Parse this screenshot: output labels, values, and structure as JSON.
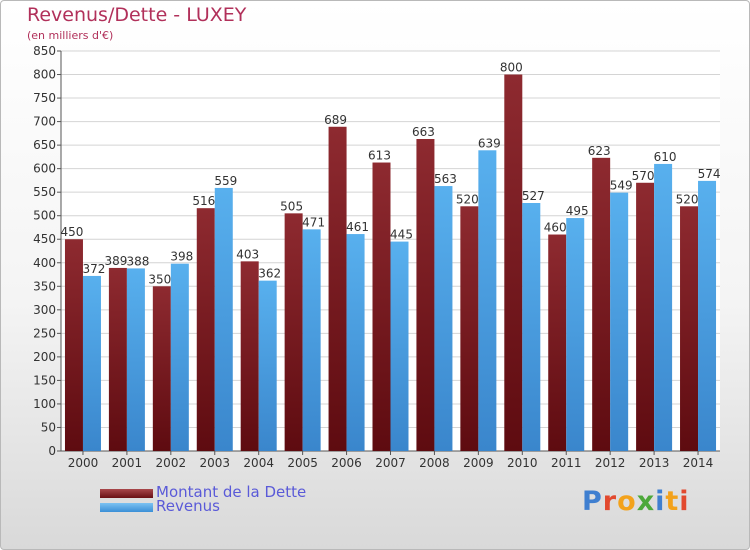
{
  "chart_data": {
    "type": "bar",
    "title": "Revenus/Dette - LUXEY",
    "subtitle": "(en milliers d'€)",
    "categories": [
      "2000",
      "2001",
      "2002",
      "2003",
      "2004",
      "2005",
      "2006",
      "2007",
      "2008",
      "2009",
      "2010",
      "2011",
      "2012",
      "2013",
      "2014"
    ],
    "series": [
      {
        "name": "Montant de la Dette",
        "values": [
          450,
          389,
          350,
          516,
          403,
          505,
          689,
          613,
          663,
          520,
          800,
          460,
          623,
          570,
          520
        ],
        "color": "#7a1e22"
      },
      {
        "name": "Revenus",
        "values": [
          372,
          388,
          398,
          559,
          362,
          471,
          461,
          445,
          563,
          639,
          527,
          495,
          549,
          610,
          574
        ],
        "color": "#4aa3e6"
      }
    ],
    "ylim": [
      0,
      850
    ],
    "yticks": [
      0,
      50,
      100,
      150,
      200,
      250,
      300,
      350,
      400,
      450,
      500,
      550,
      600,
      650,
      700,
      750,
      800,
      850
    ],
    "grid": true,
    "legend_position": "bottom-left"
  },
  "branding": {
    "logo_letters": [
      {
        "ch": "P",
        "color": "#3f7fd0"
      },
      {
        "ch": "r",
        "color": "#e2492e"
      },
      {
        "ch": "o",
        "color": "#f3a21b"
      },
      {
        "ch": "x",
        "color": "#4da83a"
      },
      {
        "ch": "i",
        "color": "#3f7fd0"
      },
      {
        "ch": "t",
        "color": "#f3a21b"
      },
      {
        "ch": "i",
        "color": "#e2492e"
      }
    ]
  }
}
